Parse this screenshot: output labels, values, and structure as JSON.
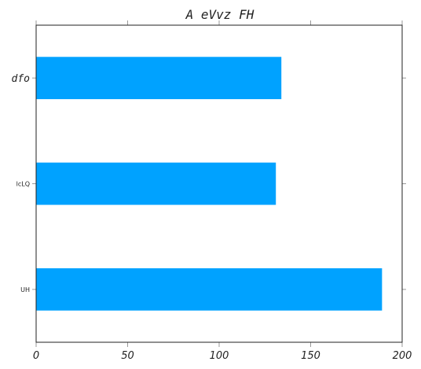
{
  "chart_data": {
    "type": "bar",
    "orientation": "horizontal",
    "title": "A eVvz FH",
    "xlabel": "",
    "ylabel": "",
    "categories": [
      "dfo",
      "lcLQ",
      "UH"
    ],
    "values": [
      134,
      131,
      189
    ],
    "xlim": [
      0,
      200
    ],
    "xticks": [
      0,
      50,
      100,
      150,
      200
    ],
    "grid": false,
    "bar_color": "#00a2ff"
  }
}
